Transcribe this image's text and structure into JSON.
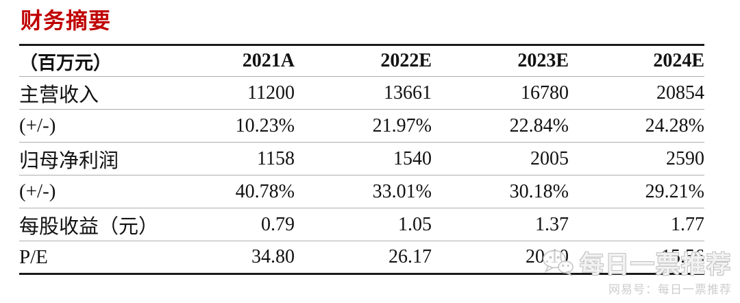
{
  "page": {
    "title": "财务摘要"
  },
  "colors": {
    "title_red": "#c00000",
    "line_dark": "#1a1a1a",
    "line_light": "#adadad",
    "wm_gray": "#c2c2c2",
    "wm_light": "#cdcdcd"
  },
  "table": {
    "columns": [
      "（百万元）",
      "2021A",
      "2022E",
      "2023E",
      "2024E"
    ],
    "rows": [
      {
        "label": "主营收入",
        "values": [
          "11200",
          "13661",
          "16780",
          "20854"
        ]
      },
      {
        "label": "(+/-)",
        "values": [
          "10.23%",
          "21.97%",
          "22.84%",
          "24.28%"
        ]
      },
      {
        "label": "归母净利润",
        "values": [
          "1158",
          "1540",
          "2005",
          "2590"
        ]
      },
      {
        "label": "(+/-)",
        "values": [
          "40.78%",
          "33.01%",
          "30.18%",
          "29.21%"
        ]
      },
      {
        "label": "每股收益（元）",
        "values": [
          "0.79",
          "1.05",
          "1.37",
          "1.77"
        ]
      },
      {
        "label": "P/E",
        "values": [
          "34.80",
          "26.17",
          "20.10",
          "15.56"
        ]
      }
    ]
  },
  "watermark": {
    "logo": "wechat-icon",
    "big_text": "每日一票推荐",
    "small_text": "网易号：每日一票推荐"
  }
}
